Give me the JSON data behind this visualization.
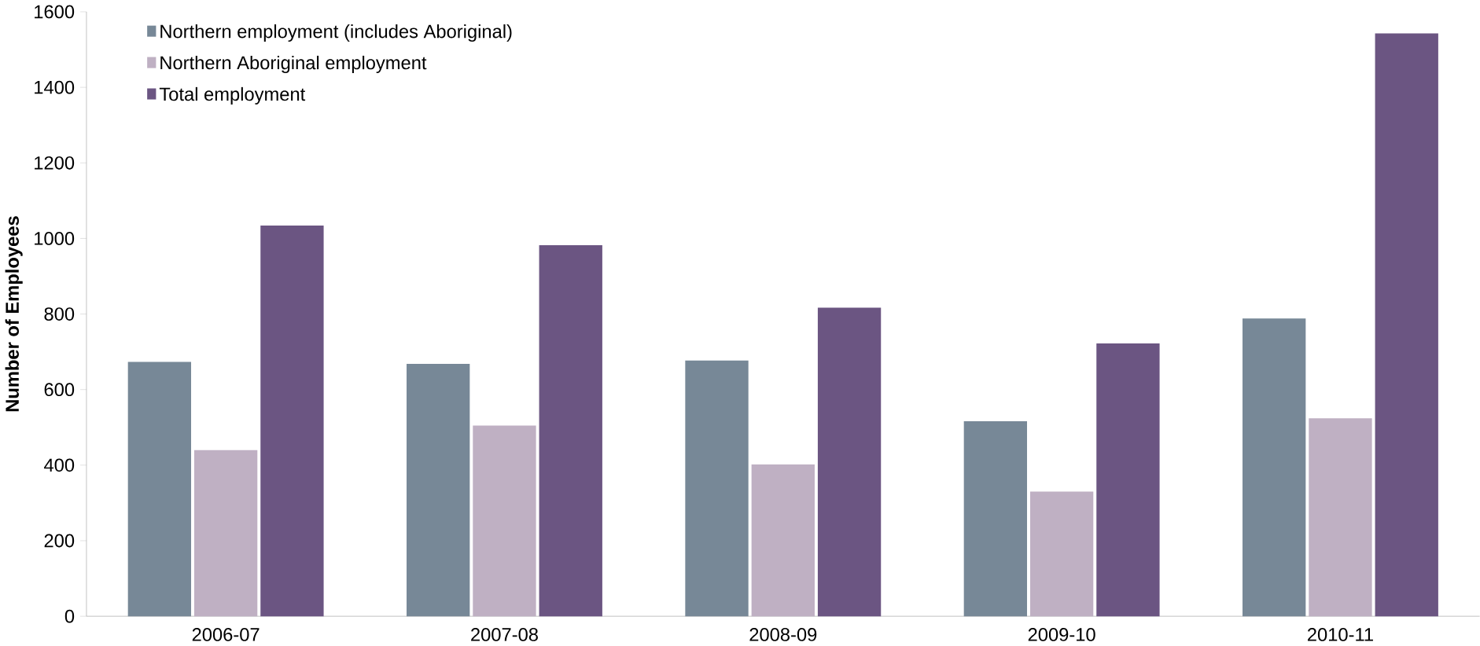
{
  "chart_data": {
    "type": "bar",
    "ylabel": "Number of Employees",
    "categories": [
      "2006-07",
      "2007-08",
      "2008-09",
      "2009-10",
      "2010-11"
    ],
    "series": [
      {
        "name": "Northern employment (includes Aboriginal)",
        "color": "#778897",
        "values": [
          673,
          668,
          677,
          516,
          788
        ]
      },
      {
        "name": "Northern Aboriginal employment",
        "color": "#bfb0c3",
        "values": [
          440,
          505,
          402,
          330,
          524
        ]
      },
      {
        "name": "Total employment",
        "color": "#6b5582",
        "values": [
          1034,
          982,
          817,
          722,
          1543
        ]
      }
    ],
    "ylim": [
      0,
      1600
    ],
    "yticks": [
      0,
      200,
      400,
      600,
      800,
      1000,
      1200,
      1400,
      1600
    ],
    "grid": false,
    "legend": "top left"
  }
}
